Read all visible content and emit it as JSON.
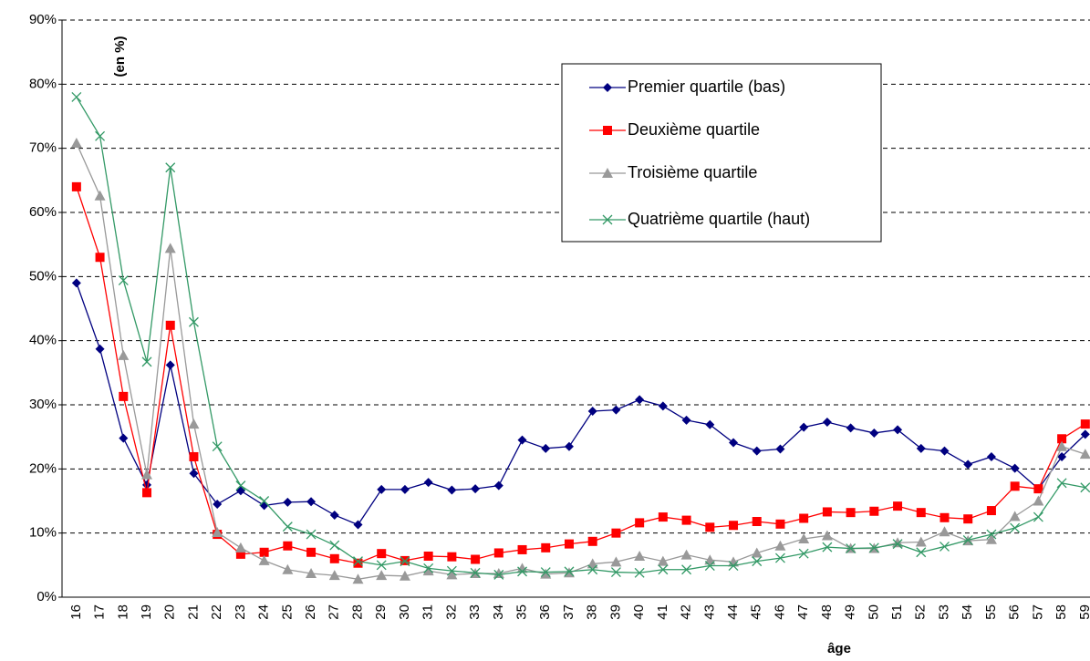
{
  "chart_data": {
    "type": "line",
    "y_axis_note": "(en %)",
    "x_label": "âge",
    "categories": [
      "16",
      "17",
      "18",
      "19",
      "20",
      "21",
      "22",
      "23",
      "24",
      "25",
      "26",
      "27",
      "28",
      "29",
      "30",
      "31",
      "32",
      "33",
      "34",
      "35",
      "36",
      "37",
      "38",
      "39",
      "40",
      "41",
      "42",
      "43",
      "44",
      "45",
      "46",
      "47",
      "48",
      "49",
      "50",
      "51",
      "52",
      "53",
      "54",
      "55",
      "56",
      "57",
      "58",
      "59"
    ],
    "ylim": [
      0,
      90
    ],
    "yticks": [
      {
        "value": 0,
        "label": "0%"
      },
      {
        "value": 10,
        "label": "10%"
      },
      {
        "value": 20,
        "label": "20%"
      },
      {
        "value": 30,
        "label": "30%"
      },
      {
        "value": 40,
        "label": "40%"
      },
      {
        "value": 50,
        "label": "50%"
      },
      {
        "value": 60,
        "label": "60%"
      },
      {
        "value": 70,
        "label": "70%"
      },
      {
        "value": 80,
        "label": "80%"
      },
      {
        "value": 90,
        "label": "90%"
      }
    ],
    "grid": true,
    "series": [
      {
        "name": "Premier quartile (bas)",
        "color": "#000080",
        "marker": "diamond",
        "values": [
          49,
          38.7,
          24.8,
          17.5,
          36.2,
          19.3,
          14.5,
          16.6,
          14.3,
          14.8,
          14.9,
          12.8,
          11.3,
          16.8,
          16.8,
          17.9,
          16.7,
          16.9,
          17.4,
          24.5,
          23.2,
          23.5,
          29,
          29.2,
          30.8,
          29.8,
          27.6,
          26.9,
          24.1,
          22.8,
          23.1,
          26.5,
          27.3,
          26.4,
          25.6,
          26.1,
          23.2,
          22.8,
          20.7,
          21.9,
          20.1,
          16.9,
          21.9,
          25.4
        ]
      },
      {
        "name": "Deuxième quartile",
        "color": "#ff0000",
        "marker": "square",
        "values": [
          64,
          53,
          31.3,
          16.3,
          42.4,
          21.9,
          9.8,
          6.7,
          7,
          8,
          7,
          6,
          5.3,
          6.8,
          5.7,
          6.4,
          6.3,
          5.9,
          6.9,
          7.4,
          7.7,
          8.3,
          8.7,
          10,
          11.6,
          12.5,
          12,
          10.9,
          11.2,
          11.8,
          11.4,
          12.3,
          13.3,
          13.2,
          13.4,
          14.2,
          13.2,
          12.4,
          12.2,
          13.5,
          17.3,
          16.9,
          24.7,
          27
        ]
      },
      {
        "name": "Troisième quartile",
        "color": "#999999",
        "marker": "triangle",
        "values": [
          70.8,
          62.6,
          37.7,
          19.1,
          54.4,
          27,
          10.1,
          7.7,
          5.7,
          4.3,
          3.7,
          3.4,
          2.8,
          3.4,
          3.3,
          4.1,
          3.5,
          3.7,
          3.7,
          4.5,
          3.6,
          3.8,
          5.2,
          5.5,
          6.4,
          5.6,
          6.6,
          5.8,
          5.5,
          6.9,
          8,
          9.1,
          9.6,
          7.6,
          7.6,
          8.5,
          8.6,
          10.2,
          8.8,
          9,
          12.6,
          15,
          23.5,
          22.3
        ]
      },
      {
        "name": "Quatrième quartile (haut)",
        "color": "#339966",
        "marker": "cross",
        "values": [
          78,
          71.9,
          49.4,
          36.7,
          67,
          42.9,
          23.5,
          17.4,
          15,
          11,
          9.8,
          8.1,
          5.6,
          5,
          5.6,
          4.5,
          4.1,
          3.8,
          3.5,
          4,
          3.9,
          4,
          4.3,
          3.9,
          3.8,
          4.3,
          4.3,
          4.9,
          4.9,
          5.6,
          6.1,
          6.8,
          7.8,
          7.6,
          7.7,
          8.3,
          7,
          7.9,
          8.9,
          9.8,
          10.8,
          12.5,
          17.8,
          17.1
        ]
      }
    ]
  }
}
